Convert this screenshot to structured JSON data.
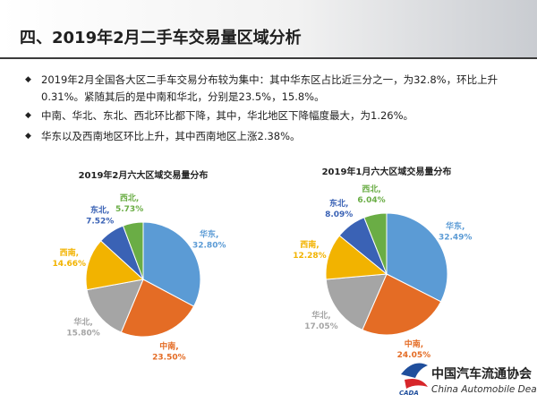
{
  "title": "四、2019年2月二手车交易量区域分析",
  "bullets": [
    "2019年2月全国各大区二手车交易分布较为集中：其中华东区占比近三分之一，为32.8%，环比上升0.31%。紧随其后的是中南和华北，分别是23.5%，15.8%。",
    "中南、华北、东北、西北环比都下降，其中，华北地区下降幅度最大，为1.26%。",
    "华东以及西南地区环比上升，其中西南地区上涨2.38%。"
  ],
  "chart_data": [
    {
      "type": "pie",
      "title": "2019年2月六大区域交易量分布",
      "categories": [
        "华东,",
        "中南,",
        "华北,",
        "西南,",
        "东北,",
        "西北,"
      ],
      "values": [
        32.8,
        23.5,
        15.8,
        14.66,
        7.52,
        5.73
      ],
      "value_labels": [
        "32.80%",
        "23.50%",
        "15.80%",
        "14.66%",
        "7.52%",
        "5.73%"
      ],
      "colors": [
        "#5b9bd5",
        "#e46c25",
        "#a5a5a5",
        "#f2b300",
        "#3a62b5",
        "#6aad45"
      ]
    },
    {
      "type": "pie",
      "title": "2019年1月六大区域交易量分布",
      "categories": [
        "华东,",
        "中南,",
        "华北,",
        "西南,",
        "东北,",
        "西北,"
      ],
      "values": [
        32.49,
        24.05,
        17.05,
        12.28,
        8.09,
        6.04
      ],
      "value_labels": [
        "32.49%",
        "24.05%",
        "17.05%",
        "12.28%",
        "8.09%",
        "6.04%"
      ],
      "colors": [
        "#5b9bd5",
        "#e46c25",
        "#a5a5a5",
        "#f2b300",
        "#3a62b5",
        "#6aad45"
      ]
    }
  ],
  "logo": {
    "mark": "CADA",
    "name": "中国汽车流通协会",
    "english": "China Automobile Dealers"
  }
}
